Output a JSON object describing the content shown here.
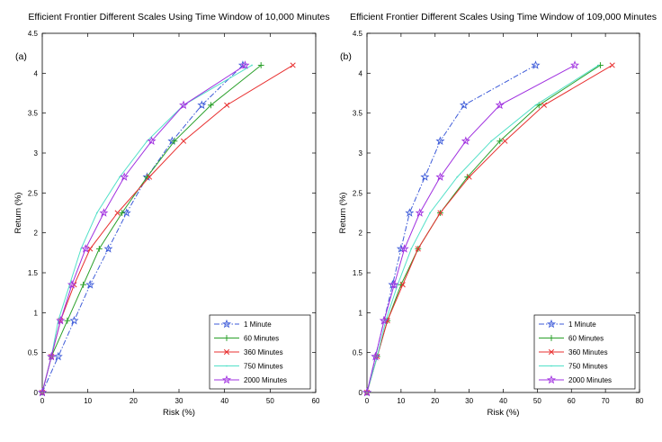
{
  "chart_data": [
    {
      "type": "line",
      "panel_label": "(a)",
      "title": "Efficient Frontier Different Scales Using Time Window of 10,000 Minutes",
      "xlabel": "Risk (%)",
      "ylabel": "Return (%)",
      "xlim": [
        0,
        60
      ],
      "ylim": [
        0,
        4.5
      ],
      "xticks": [
        0,
        10,
        20,
        30,
        40,
        50,
        60
      ],
      "xtick_labels": [
        "0",
        "10",
        "20",
        "30",
        "40",
        "50",
        "60"
      ],
      "yticks": [
        0,
        0.5,
        1,
        1.5,
        2,
        2.5,
        3,
        3.5,
        4,
        4.5
      ],
      "ytick_labels": [
        "0",
        "0.5",
        "1",
        "1.5",
        "2",
        "2.5",
        "3",
        "3.5",
        "4",
        "4.5"
      ],
      "grid": false,
      "legend_position": "bottom-right",
      "series": [
        {
          "name": "1 Minute",
          "color": "#3d5bd9",
          "dash": "dashdot",
          "marker": "star",
          "x": [
            0,
            3.5,
            7,
            10.5,
            14.5,
            18.5,
            23,
            28.5,
            35,
            44
          ],
          "y": [
            0,
            0.45,
            0.9,
            1.35,
            1.8,
            2.25,
            2.7,
            3.15,
            3.6,
            4.1
          ]
        },
        {
          "name": "60 Minutes",
          "color": "#2aa02a",
          "dash": "solid",
          "marker": "plus",
          "x": [
            0,
            2,
            5.5,
            9,
            12.5,
            17.5,
            23,
            29,
            37,
            48
          ],
          "y": [
            0,
            0.45,
            0.9,
            1.35,
            1.8,
            2.25,
            2.7,
            3.15,
            3.6,
            4.1
          ]
        },
        {
          "name": "360 Minutes",
          "color": "#e83030",
          "dash": "solid",
          "marker": "x",
          "x": [
            0,
            2,
            4,
            7,
            10.5,
            16.5,
            23.5,
            31,
            40.5,
            55
          ],
          "y": [
            0,
            0.45,
            0.9,
            1.35,
            1.8,
            2.25,
            2.7,
            3.15,
            3.6,
            4.1
          ]
        },
        {
          "name": "750 Minutes",
          "color": "#52e0c8",
          "dash": "solid",
          "marker": "dot",
          "x": [
            0,
            2,
            3.5,
            6,
            8.5,
            12,
            17,
            23,
            31,
            46
          ],
          "y": [
            0,
            0.45,
            0.9,
            1.35,
            1.8,
            2.25,
            2.7,
            3.15,
            3.6,
            4.1
          ]
        },
        {
          "name": "2000 Minutes",
          "color": "#a030e0",
          "dash": "solid",
          "marker": "star",
          "x": [
            0,
            2,
            4,
            6.5,
            9.5,
            13.5,
            18,
            24,
            31,
            44.5
          ],
          "y": [
            0,
            0.45,
            0.9,
            1.35,
            1.8,
            2.25,
            2.7,
            3.15,
            3.6,
            4.1
          ]
        }
      ]
    },
    {
      "type": "line",
      "panel_label": "(b)",
      "title": "Efficient Frontier Different Scales Using Time Window of 109,000 Minutes",
      "xlabel": "Risk (%)",
      "ylabel": "Return (%)",
      "xlim": [
        0,
        80
      ],
      "ylim": [
        0,
        4.5
      ],
      "xticks": [
        0,
        10,
        20,
        30,
        40,
        50,
        60,
        70,
        80
      ],
      "xtick_labels": [
        "0",
        "10",
        "20",
        "30",
        "40",
        "50",
        "60",
        "70",
        "80"
      ],
      "yticks": [
        0,
        0.5,
        1,
        1.5,
        2,
        2.5,
        3,
        3.5,
        4,
        4.5
      ],
      "ytick_labels": [
        "0",
        "0.5",
        "1",
        "1.5",
        "2",
        "2.5",
        "3",
        "3.5",
        "4",
        "4.5"
      ],
      "grid": false,
      "legend_position": "bottom-right",
      "series": [
        {
          "name": "1 Minute",
          "color": "#3d5bd9",
          "dash": "dashdot",
          "marker": "star",
          "x": [
            0,
            2.5,
            5,
            7.5,
            10,
            12.5,
            17,
            21.5,
            28.5,
            49.5
          ],
          "y": [
            0,
            0.45,
            0.9,
            1.35,
            1.8,
            2.25,
            2.7,
            3.15,
            3.6,
            4.1
          ]
        },
        {
          "name": "60 Minutes",
          "color": "#2aa02a",
          "dash": "solid",
          "marker": "plus",
          "x": [
            0,
            3,
            6,
            10,
            15,
            21.5,
            29.5,
            39,
            50.5,
            68.5
          ],
          "y": [
            0,
            0.45,
            0.9,
            1.35,
            1.8,
            2.25,
            2.7,
            3.15,
            3.6,
            4.1
          ]
        },
        {
          "name": "360 Minutes",
          "color": "#e83030",
          "dash": "solid",
          "marker": "x",
          "x": [
            0,
            3,
            6,
            10.5,
            15,
            21.5,
            30,
            40.5,
            52,
            72
          ],
          "y": [
            0,
            0.45,
            0.9,
            1.35,
            1.8,
            2.25,
            2.7,
            3.15,
            3.6,
            4.1
          ]
        },
        {
          "name": "750 Minutes",
          "color": "#52e0c8",
          "dash": "solid",
          "marker": "dot",
          "x": [
            0,
            3,
            5.5,
            9,
            13,
            18.5,
            26.5,
            36.5,
            49.5,
            68
          ],
          "y": [
            0,
            0.45,
            0.9,
            1.35,
            1.8,
            2.25,
            2.7,
            3.15,
            3.6,
            4.1
          ]
        },
        {
          "name": "2000 Minutes",
          "color": "#a030e0",
          "dash": "solid",
          "marker": "star",
          "x": [
            0,
            2.5,
            5,
            8,
            11,
            15.5,
            21.5,
            29,
            39,
            61
          ],
          "y": [
            0,
            0.45,
            0.9,
            1.35,
            1.8,
            2.25,
            2.7,
            3.15,
            3.6,
            4.1
          ]
        }
      ]
    }
  ]
}
